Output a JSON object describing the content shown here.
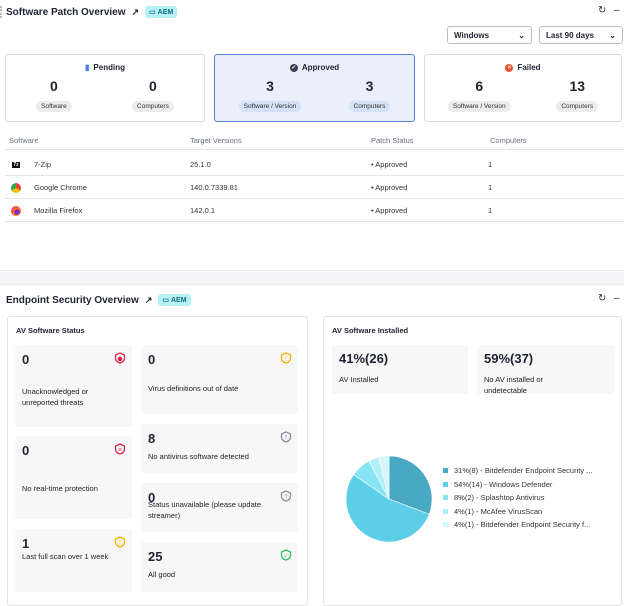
{
  "patch": {
    "title": "Software Patch Overview",
    "badge": "AEM",
    "os_select": "Windows",
    "range_select": "Last 90 days",
    "cards": [
      {
        "label": "Pending",
        "icon": "pending-icon",
        "a": "0",
        "a_label": "Software",
        "b": "0",
        "b_label": "Computers"
      },
      {
        "label": "Approved",
        "icon": "check-circle-icon",
        "a": "3",
        "a_label": "Software / Version",
        "b": "3",
        "b_label": "Computers"
      },
      {
        "label": "Failed",
        "icon": "x-circle-icon",
        "a": "6",
        "a_label": "Software / Version",
        "b": "13",
        "b_label": "Computers"
      }
    ],
    "columns": [
      "Software",
      "Target Versions",
      "Patch Status",
      "Computers"
    ],
    "rows": [
      {
        "name": "7-Zip",
        "version": "25.1.0",
        "status": "• Approved",
        "computers": "1",
        "icon": "7zip-icon"
      },
      {
        "name": "Google Chrome",
        "version": "140.0.7339.81",
        "status": "• Approved",
        "computers": "1",
        "icon": "chrome-icon"
      },
      {
        "name": "Mozilla Firefox",
        "version": "142.0.1",
        "status": "• Approved",
        "computers": "1",
        "icon": "firefox-icon"
      }
    ]
  },
  "endpoint": {
    "title": "Endpoint Security Overview",
    "badge": "AEM",
    "status_title": "AV Software Status",
    "tiles_left": [
      {
        "value": "0",
        "label": "Unacknowledged or unreported threats",
        "color": "#d6284e"
      },
      {
        "value": "0",
        "label": "No real-time protection",
        "color": "#d6284e"
      },
      {
        "value": "1",
        "label": "Last full scan over 1 week",
        "color": "#e8b400"
      }
    ],
    "tiles_right": [
      {
        "value": "0",
        "label": "Virus definitions out of date",
        "color": "#e8b400"
      },
      {
        "value": "8",
        "label": "No antivirus software detected",
        "color": "#8a8fa0"
      },
      {
        "value": "0",
        "label": "Status unavailable (please update streamer)",
        "color": "#8a8fa0"
      },
      {
        "value": "25",
        "label": "All good",
        "color": "#2fbf5a"
      }
    ],
    "installed_title": "AV Software Installed",
    "installed": {
      "value": "41%(26)",
      "label": "AV Installed"
    },
    "not_installed": {
      "value": "59%(37)",
      "label": "No AV installed or undetectable"
    }
  },
  "chart_data": {
    "type": "pie",
    "slices": [
      {
        "label": "31%(8) - Bitdefender Endpoint Security ...",
        "value": 8,
        "color": "#4aa9c2"
      },
      {
        "label": "54%(14) - Windows Defender",
        "value": 14,
        "color": "#5ccee6"
      },
      {
        "label": "8%(2) - Splashtop Antivirus",
        "value": 2,
        "color": "#88e3f3"
      },
      {
        "label": "4%(1) - McAfee VirusScan",
        "value": 1,
        "color": "#b0eff8"
      },
      {
        "label": "4%(1) - Bitdefender Endpoint Security f...",
        "value": 1,
        "color": "#d3f7fb"
      }
    ],
    "legend": "right"
  }
}
